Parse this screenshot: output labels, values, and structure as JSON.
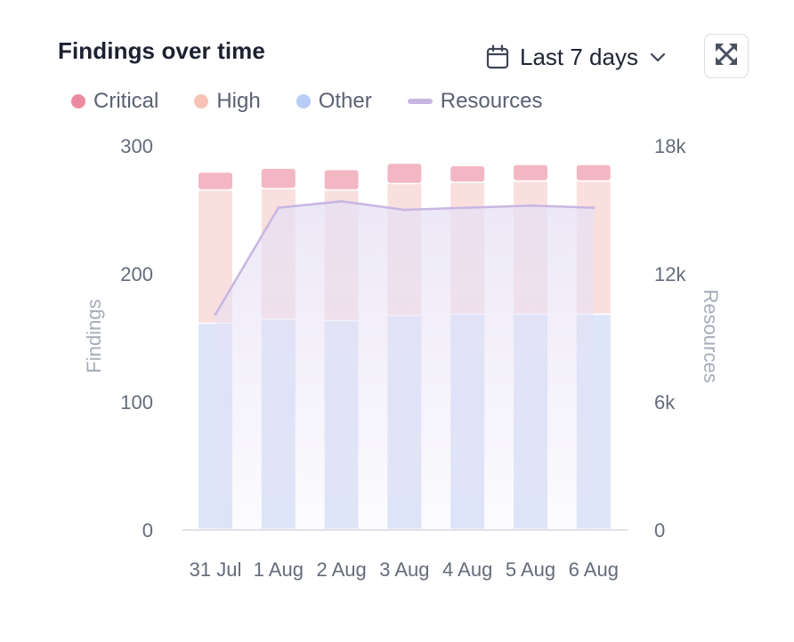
{
  "header": {
    "title": "Findings over time",
    "range_label": "Last 7 days"
  },
  "icons": {
    "calendar": "calendar-icon",
    "chevron": "chevron-down-icon",
    "expand": "expand-icon"
  },
  "colors": {
    "critical": "#f3b7c4",
    "critical_legend": "#ec8ba0",
    "high": "#f9e0df",
    "high_legend": "#f8c2b6",
    "other": "#dde5f8",
    "other_legend": "#b9ccf6",
    "resources_line": "#c7b6e2",
    "resources_fill": "#e6e0f5",
    "axis_text": "#646b7a",
    "axis_title": "#a6acb8"
  },
  "chart_data": {
    "type": "bar",
    "stacked": true,
    "categories": [
      "31 Jul",
      "1 Aug",
      "2 Aug",
      "3 Aug",
      "4 Aug",
      "5 Aug",
      "6 Aug"
    ],
    "series": [
      {
        "name": "Other",
        "values": [
          161,
          164,
          163,
          167,
          168,
          168,
          168
        ]
      },
      {
        "name": "High",
        "values": [
          104,
          102,
          102,
          103,
          103,
          104,
          104
        ]
      },
      {
        "name": "Critical",
        "values": [
          14,
          16,
          16,
          16,
          13,
          13,
          13
        ]
      }
    ],
    "line_series": {
      "name": "Resources",
      "axis": "right",
      "values": [
        10100,
        15100,
        15400,
        15000,
        15100,
        15200,
        15100
      ]
    },
    "ylabel": "Findings",
    "y2label": "Resources",
    "ylim": [
      0,
      300
    ],
    "y2lim": [
      0,
      18000
    ],
    "yticks": [
      "300",
      "200",
      "100",
      "0"
    ],
    "y2ticks": [
      "18k",
      "12k",
      "6k",
      "0"
    ],
    "grid": false,
    "legend": [
      "Critical",
      "High",
      "Other",
      "Resources"
    ]
  }
}
